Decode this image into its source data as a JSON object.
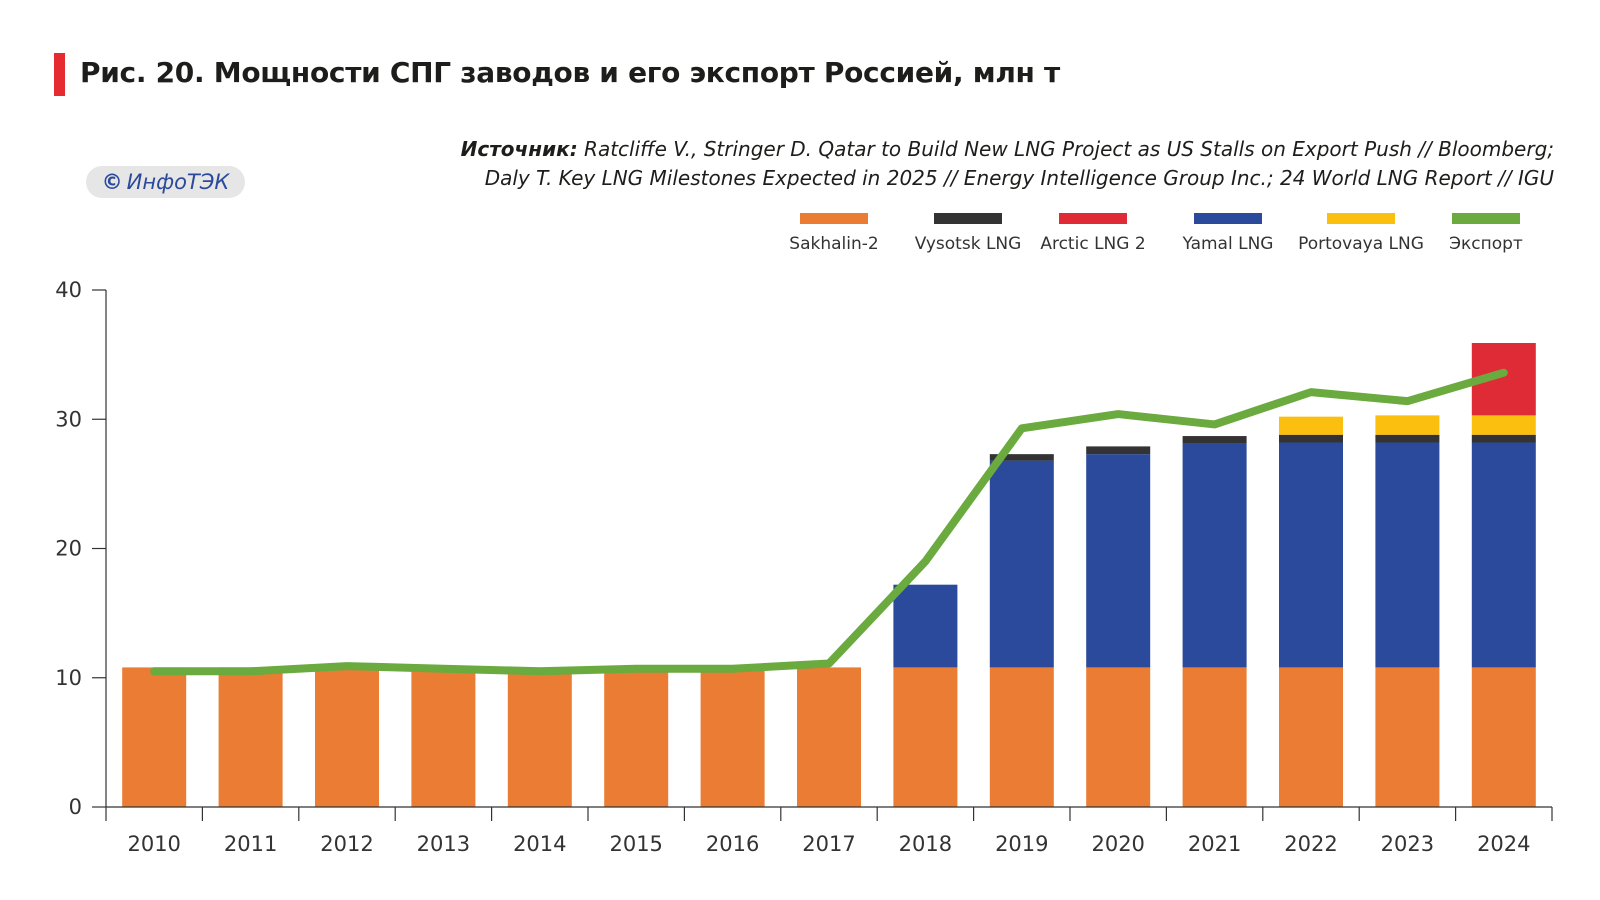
{
  "header": {
    "title": "Рис. 20. Мощности СПГ заводов и его экспорт Россией, млн т",
    "source_label": "Источник:",
    "source_line1": " Ratcliffe V., Stringer D. Qatar to Build New LNG Project as US Stalls on Export Push // Bloomberg;",
    "source_line2": "Daly T. Key LNG Milestones Expected in 2025 // Energy Intelligence Group Inc.; 24 World LNG Report // IGU",
    "badge_symbol": "©",
    "badge_text": "ИнфоТЭК",
    "accent_color": "#e52b2f"
  },
  "chart_data": {
    "type": "bar",
    "stacked": true,
    "title": "Рис. 20. Мощности СПГ заводов и его экспорт Россией, млн т",
    "xlabel": "",
    "ylabel": "",
    "ylim": [
      0,
      40
    ],
    "yticks": [
      0,
      10,
      20,
      30,
      40
    ],
    "grid": false,
    "legend_position": "top-right",
    "categories": [
      "2010",
      "2011",
      "2012",
      "2013",
      "2014",
      "2015",
      "2016",
      "2017",
      "2018",
      "2019",
      "2020",
      "2021",
      "2022",
      "2023",
      "2024"
    ],
    "series": [
      {
        "name": "Sakhalin-2",
        "color": "#ea7d33",
        "values": [
          10.8,
          10.8,
          10.8,
          10.8,
          10.8,
          10.8,
          10.8,
          10.8,
          10.8,
          10.8,
          10.8,
          10.8,
          10.8,
          10.8,
          10.8
        ]
      },
      {
        "name": "Yamal LNG",
        "color": "#2b4a9b",
        "values": [
          0,
          0,
          0,
          0,
          0,
          0,
          0,
          0,
          6.4,
          16.0,
          16.5,
          17.3,
          17.4,
          17.4,
          17.4
        ]
      },
      {
        "name": "Vysotsk LNG",
        "color": "#333333",
        "values": [
          0,
          0,
          0,
          0,
          0,
          0,
          0,
          0,
          0,
          0.5,
          0.6,
          0.6,
          0.6,
          0.6,
          0.6
        ]
      },
      {
        "name": "Portovaya LNG",
        "color": "#fbbf0f",
        "values": [
          0,
          0,
          0,
          0,
          0,
          0,
          0,
          0,
          0,
          0,
          0,
          0,
          1.4,
          1.5,
          1.5
        ]
      },
      {
        "name": "Arctic LNG 2",
        "color": "#df2b36",
        "values": [
          0,
          0,
          0,
          0,
          0,
          0,
          0,
          0,
          0,
          0,
          0,
          0,
          0,
          0,
          5.6
        ]
      }
    ],
    "line": {
      "name": "Экспорт",
      "color": "#6aaa3f",
      "values": [
        10.5,
        10.5,
        10.9,
        10.7,
        10.5,
        10.7,
        10.7,
        11.1,
        19.0,
        29.3,
        30.4,
        29.6,
        32.1,
        31.4,
        33.6
      ]
    },
    "legend_order": [
      "Sakhalin-2",
      "Vysotsk LNG",
      "Arctic LNG 2",
      "Yamal LNG",
      "Portovaya LNG",
      "Экспорт"
    ]
  }
}
